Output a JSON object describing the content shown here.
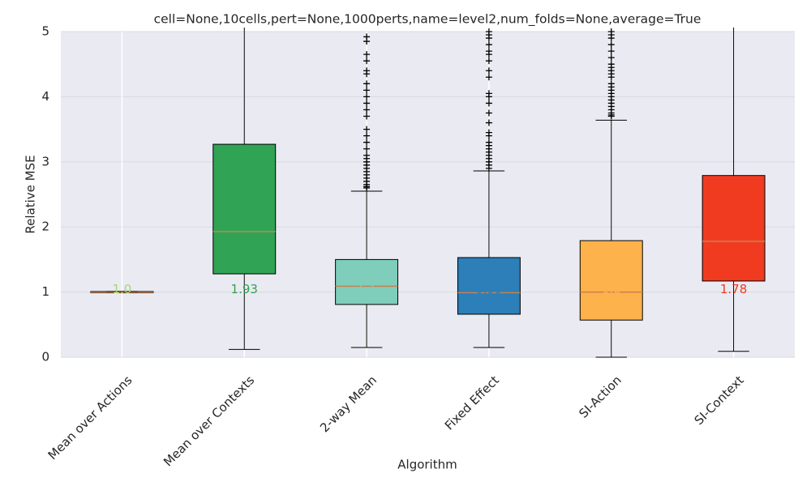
{
  "chart_data": {
    "type": "box",
    "title": "cell=None,10cells,pert=None,1000perts,name=level2,num_folds=None,average=True",
    "xlabel": "Algorithm",
    "ylabel": "Relative MSE",
    "categories": [
      "Mean over Actions",
      "Mean over Contexts",
      "2-way Mean",
      "Fixed Effect",
      "SI-Action",
      "SI-Context"
    ],
    "ylim": [
      0,
      5
    ],
    "yticks": [
      0,
      1,
      2,
      3,
      4,
      5
    ],
    "grid": true,
    "boxes": [
      {
        "whislo": 0.99,
        "q1": 0.99,
        "med": 1.0,
        "q3": 1.01,
        "whishi": 1.01,
        "fliers": [],
        "color": "#d9ef8b",
        "label": "1.0",
        "label_color": "#a6d96a"
      },
      {
        "whislo": 0.12,
        "q1": 1.28,
        "med": 1.93,
        "q3": 3.27,
        "whishi": 5.5,
        "fliers": [],
        "color": "#31a354",
        "label": "1.93",
        "label_color": "#31a354"
      },
      {
        "whislo": 0.15,
        "q1": 0.81,
        "med": 1.09,
        "q3": 1.5,
        "whishi": 2.55,
        "fliers": [
          2.6,
          2.62,
          2.65,
          2.7,
          2.75,
          2.8,
          2.85,
          2.9,
          2.95,
          3.0,
          3.05,
          3.1,
          3.2,
          3.3,
          3.4,
          3.5,
          3.7,
          3.8,
          3.9,
          4.0,
          4.1,
          4.2,
          4.35,
          4.4,
          4.55,
          4.65,
          4.85,
          4.92
        ],
        "color": "#7fcdbb",
        "label": "1.1",
        "label_color": "#7fcdbb"
      },
      {
        "whislo": 0.15,
        "q1": 0.66,
        "med": 0.99,
        "q3": 1.53,
        "whishi": 2.86,
        "fliers": [
          2.9,
          2.95,
          3.0,
          3.05,
          3.1,
          3.15,
          3.2,
          3.25,
          3.3,
          3.4,
          3.45,
          3.6,
          3.75,
          3.9,
          4.0,
          4.05,
          4.3,
          4.4,
          4.55,
          4.65,
          4.7,
          4.8,
          4.9,
          4.95,
          5.0
        ],
        "color": "#2c7fb8",
        "label": "0.99",
        "label_color": "#2c7fb8"
      },
      {
        "whislo": 0.0,
        "q1": 0.57,
        "med": 1.0,
        "q3": 1.79,
        "whishi": 3.64,
        "fliers": [
          3.7,
          3.72,
          3.75,
          3.8,
          3.85,
          3.9,
          3.95,
          4.0,
          4.05,
          4.1,
          4.15,
          4.2,
          4.3,
          4.35,
          4.4,
          4.45,
          4.5,
          4.6,
          4.7,
          4.8,
          4.9,
          4.95,
          5.0
        ],
        "color": "#feb24c",
        "label": "1.0",
        "label_color": "#feb24c"
      },
      {
        "whislo": 0.09,
        "q1": 1.17,
        "med": 1.78,
        "q3": 2.79,
        "whishi": 5.5,
        "fliers": [],
        "color": "#f03b20",
        "label": "1.78",
        "label_color": "#f03b20"
      }
    ]
  }
}
